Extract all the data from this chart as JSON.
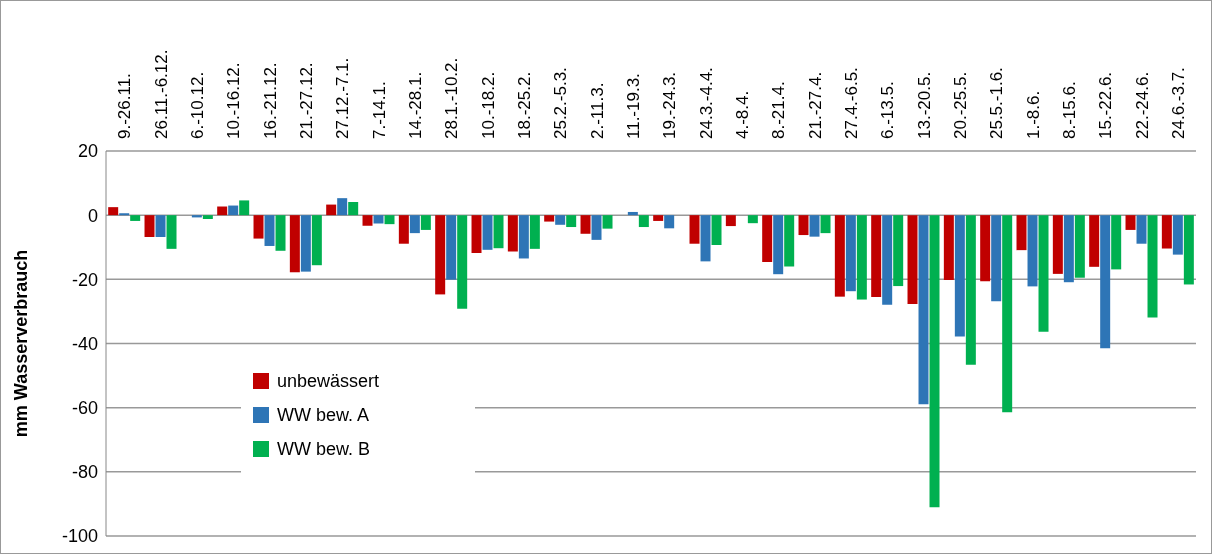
{
  "chart_data": {
    "type": "bar",
    "ylabel": "mm Wasserverbrauch",
    "categories": [
      "9.-26.11.",
      "26.11.-6.12.",
      "6.-10.12.",
      "10.-16.12.",
      "16.-21.12.",
      "21.-27.12.",
      "27.12.-7.1.",
      "7.-14.1.",
      "14.-28.1.",
      "28.1.-10.2.",
      "10.-18.2.",
      "18.-25.2.",
      "25.2.-5.3.",
      "2.-11.3.",
      "11.-19.3.",
      "19.-24.3.",
      "24.3.-4.4.",
      "4.-8.4.",
      "8.-21.4.",
      "21.-27.4.",
      "27.4.-6.5.",
      "6.-13.5.",
      "13.-20.5.",
      "20.-25.5.",
      "25.5.-1.6.",
      "1.-8.6.",
      "8.-15.6.",
      "15.-22.6.",
      "22.-24.6.",
      "24.6.-3.7."
    ],
    "series": [
      {
        "name": "unbewässert",
        "color": "#c00000",
        "values": [
          2.5,
          -6.8,
          null,
          2.7,
          -7.3,
          -17.8,
          3.3,
          -3.3,
          -8.9,
          -24.7,
          -11.8,
          -11.3,
          -2,
          -5.8,
          null,
          -1.8,
          -8.9,
          -3.4,
          -14.6,
          -6.2,
          -25.4,
          -25.5,
          -27.7,
          -20.2,
          -20.6,
          -10.9,
          -18.3,
          -16.1,
          -4.6,
          -10.4
        ]
      },
      {
        "name": "WW bew. A",
        "color": "#2e75b6",
        "values": [
          0.6,
          -6.8,
          -0.7,
          3,
          -9.6,
          -17.6,
          5.3,
          -2.6,
          -5.6,
          -20.1,
          -10.8,
          -13.5,
          -3,
          -7.7,
          1,
          -4.1,
          -14.4,
          null,
          -18.4,
          -6.7,
          -23.7,
          -27.9,
          -58.9,
          -37.8,
          -26.8,
          -22.2,
          -20.9,
          -41.5,
          -8.9,
          -12.3
        ]
      },
      {
        "name": "WW bew. B",
        "color": "#00b050",
        "values": [
          -1.8,
          -10.5,
          -1.2,
          4.6,
          -11.1,
          -15.6,
          4.1,
          -2.8,
          -4.6,
          -29.2,
          -10.3,
          -10.5,
          -3.7,
          -4.2,
          -3.7,
          null,
          -9.3,
          -2.5,
          -16,
          -5.6,
          -26.3,
          -22.1,
          -91,
          -46.6,
          -61.4,
          -36.3,
          -19.5,
          -16.9,
          -31.9,
          -21.6
        ]
      }
    ],
    "ylim": [
      -100,
      20
    ],
    "yticks": [
      -100,
      -80,
      -60,
      -40,
      -20,
      0,
      20
    ],
    "grid": "y",
    "legend": "bottom left"
  }
}
